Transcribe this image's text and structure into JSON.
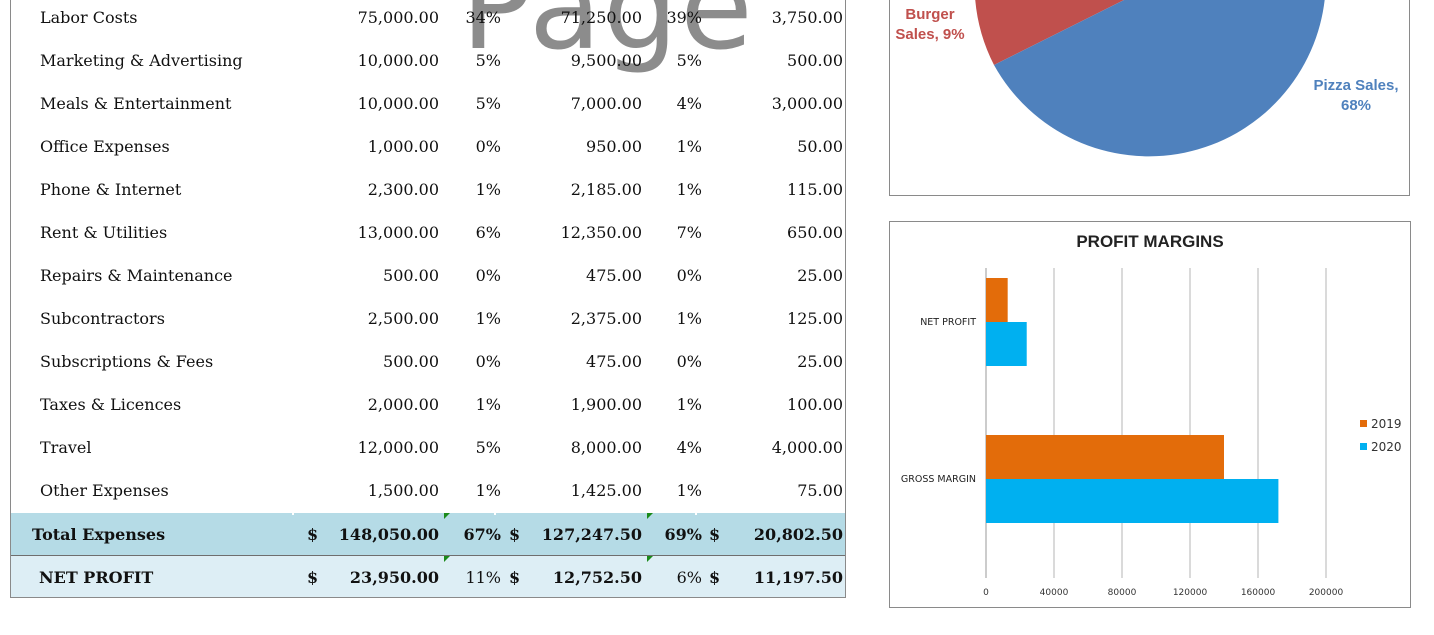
{
  "watermark": "Page",
  "table": {
    "rows": [
      {
        "label": "Labor Costs",
        "budget": "75,000.00",
        "budget_pct": "34%",
        "actual": "71,250.00",
        "actual_pct": "39%",
        "diff": "3,750.00"
      },
      {
        "label": "Marketing & Advertising",
        "budget": "10,000.00",
        "budget_pct": "5%",
        "actual": "9,500.00",
        "actual_pct": "5%",
        "diff": "500.00"
      },
      {
        "label": "Meals & Entertainment",
        "budget": "10,000.00",
        "budget_pct": "5%",
        "actual": "7,000.00",
        "actual_pct": "4%",
        "diff": "3,000.00"
      },
      {
        "label": "Office Expenses",
        "budget": "1,000.00",
        "budget_pct": "0%",
        "actual": "950.00",
        "actual_pct": "1%",
        "diff": "50.00"
      },
      {
        "label": "Phone & Internet",
        "budget": "2,300.00",
        "budget_pct": "1%",
        "actual": "2,185.00",
        "actual_pct": "1%",
        "diff": "115.00"
      },
      {
        "label": "Rent & Utilities",
        "budget": "13,000.00",
        "budget_pct": "6%",
        "actual": "12,350.00",
        "actual_pct": "7%",
        "diff": "650.00"
      },
      {
        "label": "Repairs & Maintenance",
        "budget": "500.00",
        "budget_pct": "0%",
        "actual": "475.00",
        "actual_pct": "0%",
        "diff": "25.00"
      },
      {
        "label": "Subcontractors",
        "budget": "2,500.00",
        "budget_pct": "1%",
        "actual": "2,375.00",
        "actual_pct": "1%",
        "diff": "125.00"
      },
      {
        "label": "Subscriptions & Fees",
        "budget": "500.00",
        "budget_pct": "0%",
        "actual": "475.00",
        "actual_pct": "0%",
        "diff": "25.00"
      },
      {
        "label": "Taxes & Licences",
        "budget": "2,000.00",
        "budget_pct": "1%",
        "actual": "1,900.00",
        "actual_pct": "1%",
        "diff": "100.00"
      },
      {
        "label": "Travel",
        "budget": "12,000.00",
        "budget_pct": "5%",
        "actual": "8,000.00",
        "actual_pct": "4%",
        "diff": "4,000.00"
      },
      {
        "label": "Other Expenses",
        "budget": "1,500.00",
        "budget_pct": "1%",
        "actual": "1,425.00",
        "actual_pct": "1%",
        "diff": "75.00"
      }
    ],
    "total": {
      "label": "Total Expenses",
      "currency": "$",
      "budget": "148,050.00",
      "budget_pct": "67%",
      "actual": "127,247.50",
      "actual_pct": "69%",
      "diff": "20,802.50"
    },
    "net": {
      "label": "NET PROFIT",
      "currency": "$",
      "budget": "23,950.00",
      "budget_pct": "11%",
      "actual": "12,752.50",
      "actual_pct": "6%",
      "diff": "11,197.50"
    }
  },
  "pie_chart": {
    "labels": [
      {
        "name": "Burger",
        "value": "Sales, 9%",
        "color": "#c0504d"
      },
      {
        "name": "Pizza Sales,",
        "value": "68%",
        "color": "#4f81bd"
      }
    ]
  },
  "chart_data": {
    "type": "bar",
    "orientation": "horizontal",
    "title": "PROFIT MARGINS",
    "categories": [
      "NET PROFIT",
      "GROSS MARGIN"
    ],
    "series": [
      {
        "name": "2019",
        "values": [
          12752.5,
          140000
        ],
        "color": "#e36c0a"
      },
      {
        "name": "2020",
        "values": [
          23950,
          172000
        ],
        "color": "#00b0f0"
      }
    ],
    "xlim": [
      0,
      200000
    ],
    "xticks": [
      0,
      40000,
      80000,
      120000,
      160000,
      200000
    ],
    "grid": true,
    "legend": "right"
  }
}
